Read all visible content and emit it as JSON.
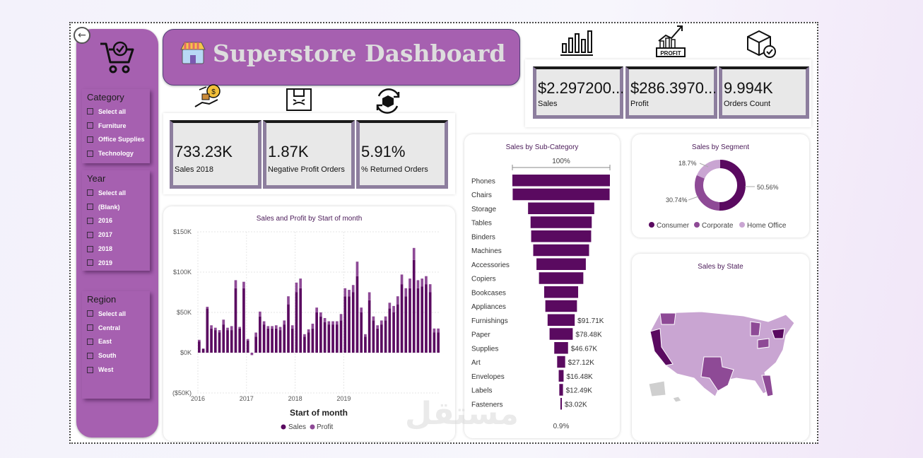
{
  "banner": {
    "title": "Superstore Dashboard"
  },
  "slicers": {
    "category": {
      "title": "Category",
      "options": [
        "Select all",
        "Furniture",
        "Office Supplies",
        "Technology"
      ]
    },
    "year": {
      "title": "Year",
      "options": [
        "Select all",
        "(Blank)",
        "2016",
        "2017",
        "2018",
        "2019"
      ]
    },
    "region": {
      "title": "Region",
      "options": [
        "Select all",
        "Central",
        "East",
        "South",
        "West"
      ]
    }
  },
  "kpis_top": [
    {
      "value": "$2.297200...",
      "label": "Sales"
    },
    {
      "value": "$286.3970...",
      "label": "Profit"
    },
    {
      "value": "9.994K",
      "label": "Orders Count"
    }
  ],
  "kpis_mid": [
    {
      "value": "733.23K",
      "label": "Sales 2018"
    },
    {
      "value": "1.87K",
      "label": "Negative Profit Orders"
    },
    {
      "value": "5.91%",
      "label": "% Returned Orders"
    }
  ],
  "icons": {
    "banner": "store-icon",
    "top": [
      "bar-chart-icon",
      "profit-chart-icon",
      "box-check-icon"
    ],
    "mid": [
      "hand-money-icon",
      "broken-box-icon",
      "return-box-icon"
    ],
    "sidebar": "cart-check-icon",
    "back": "back-arrow-icon"
  },
  "colors": {
    "accent": "#a660b0",
    "dark": "#5a0a60",
    "mid": "#8e4a96",
    "light": "#c9a5d2",
    "grey": "#cfcfcf"
  },
  "chart_data": [
    {
      "type": "bar",
      "title": "Sales and Profit by Start of month",
      "xlabel": "Start of month",
      "ylabel": "",
      "yticks": [
        "$150K",
        "$100K",
        "$50K",
        "$0K",
        "($50K)"
      ],
      "ylim": [
        -50000,
        150000
      ],
      "xticks": [
        "2016",
        "2017",
        "2018",
        "2019"
      ],
      "stacked": true,
      "legend": "bottom",
      "series": [
        {
          "name": "Sales",
          "values": [
            14,
            5,
            55,
            30,
            28,
            25,
            35,
            28,
            28,
            80,
            30,
            80,
            15,
            -3,
            20,
            45,
            35,
            30,
            30,
            30,
            28,
            35,
            60,
            30,
            75,
            80,
            20,
            25,
            30,
            50,
            45,
            38,
            35,
            35,
            35,
            40,
            70,
            70,
            75,
            95,
            50,
            20,
            65,
            40,
            30,
            35,
            40,
            55,
            50,
            60,
            85,
            70,
            80,
            115,
            80,
            82,
            85,
            75,
            25,
            25
          ]
        },
        {
          "name": "Profit",
          "values": [
            2,
            0,
            2,
            4,
            3,
            3,
            6,
            3,
            5,
            10,
            2,
            8,
            2,
            1,
            5,
            6,
            4,
            3,
            3,
            4,
            4,
            5,
            10,
            4,
            12,
            12,
            3,
            4,
            6,
            6,
            5,
            5,
            4,
            4,
            4,
            8,
            10,
            8,
            9,
            18,
            6,
            3,
            10,
            5,
            4,
            5,
            5,
            7,
            8,
            10,
            12,
            10,
            12,
            15,
            10,
            10,
            10,
            10,
            5,
            5
          ]
        }
      ]
    },
    {
      "type": "bar",
      "title": "Sales by Sub-Category",
      "top_label": "100%",
      "bottom_label": "0.9%",
      "categories": [
        "Phones",
        "Chairs",
        "Storage",
        "Tables",
        "Binders",
        "Machines",
        "Accessories",
        "Copiers",
        "Bookcases",
        "Appliances",
        "Furnishings",
        "Paper",
        "Supplies",
        "Art",
        "Envelopes",
        "Labels",
        "Fasteners"
      ],
      "values": [
        330,
        328,
        224,
        207,
        203,
        189,
        167,
        150,
        115,
        107,
        91.71,
        78.48,
        46.67,
        27.12,
        16.48,
        12.49,
        3.02
      ],
      "data_labels": [
        "",
        "",
        "",
        "",
        "",
        "",
        "",
        "",
        "",
        "",
        "$91.71K",
        "$78.48K",
        "$46.67K",
        "$27.12K",
        "$16.48K",
        "$12.49K",
        "$3.02K"
      ]
    },
    {
      "type": "pie",
      "title": "Sales by Segment",
      "categories": [
        "Consumer",
        "Corporate",
        "Home Office"
      ],
      "values": [
        50.56,
        30.74,
        18.7
      ],
      "data_labels": [
        "50.56%",
        "30.74%",
        "18.7%"
      ],
      "legend": "bottom"
    },
    {
      "type": "map",
      "title": "Sales by State"
    }
  ]
}
